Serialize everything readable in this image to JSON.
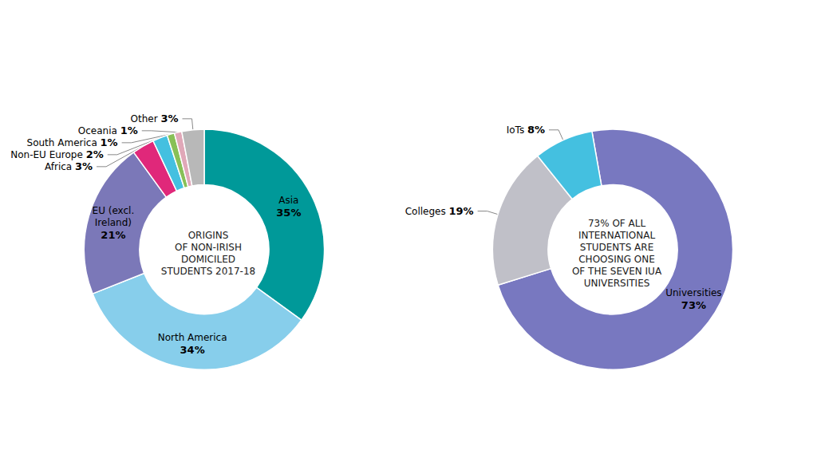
{
  "chart_data": [
    {
      "type": "pie",
      "categories": [
        "Asia",
        "North America",
        "EU (excl.\nIreland)",
        "Africa",
        "Non-EU Europe",
        "South America",
        "Oceania",
        "Other"
      ],
      "values": [
        35,
        34,
        21,
        3,
        2,
        1,
        1,
        3
      ],
      "value_labels": [
        "35%",
        "34%",
        "21%",
        "3%",
        "2%",
        "1%",
        "1%",
        "3%"
      ],
      "colors": [
        "#009999",
        "#87CEEB",
        "#7B78B8",
        "#E0287A",
        "#44C0E0",
        "#88C057",
        "#E0A8B8",
        "#B8B8B8"
      ],
      "data_labels": true,
      "annotations": [
        "ORIGINS\nOF NON-IRISH\nDOMICILED\nSTUDENTS 2017-18"
      ]
    },
    {
      "type": "pie",
      "categories": [
        "Universities",
        "Colleges",
        "IoTs"
      ],
      "values": [
        73,
        19,
        8
      ],
      "value_labels": [
        "73%",
        "19%",
        "8%"
      ],
      "colors": [
        "#7878C0",
        "#C0C0C8",
        "#44C0E0"
      ],
      "data_labels": true,
      "annotations": [
        "73% OF ALL\nINTERNATIONAL\nSTUDENTS ARE\nCHOOSING ONE\nOF THE SEVEN IUA\nUNIVERSITIES"
      ]
    }
  ]
}
